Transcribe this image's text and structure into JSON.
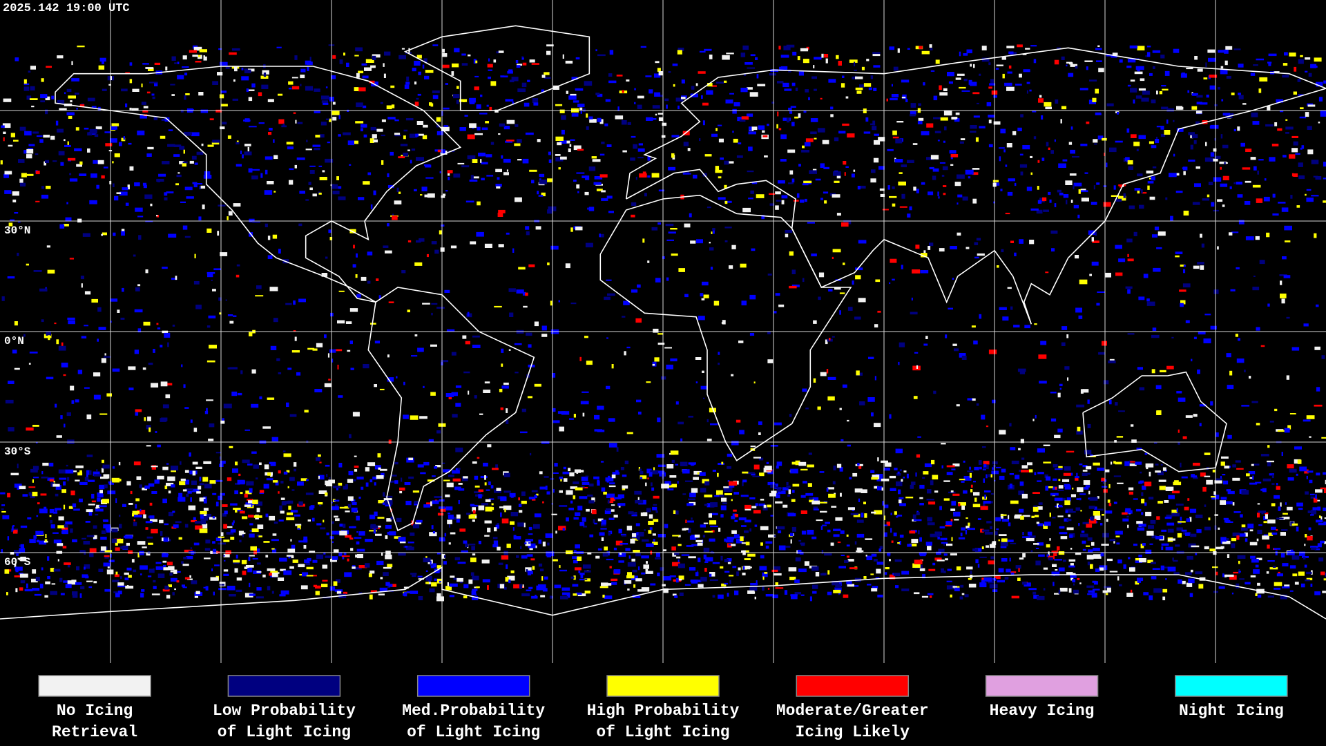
{
  "header": {
    "timestamp": "2025.142 19:00 UTC"
  },
  "map": {
    "lat_labels": [
      "30°N",
      "0°N",
      "30°S",
      "60°S"
    ]
  },
  "legend": {
    "items": [
      {
        "lines": [
          "No Icing",
          "Retrieval"
        ],
        "color": "#f2f2f2"
      },
      {
        "lines": [
          "Low Probability",
          "of Light Icing"
        ],
        "color": "#000080"
      },
      {
        "lines": [
          "Med.Probability",
          "of Light Icing"
        ],
        "color": "#0000ff"
      },
      {
        "lines": [
          "High Probability",
          "of Light Icing"
        ],
        "color": "#ffff00"
      },
      {
        "lines": [
          "Moderate/Greater",
          "Icing Likely"
        ],
        "color": "#ff0000"
      },
      {
        "lines": [
          "Heavy Icing"
        ],
        "color": "#e0a0e0"
      },
      {
        "lines": [
          "Night Icing"
        ],
        "color": "#00ffff"
      }
    ]
  }
}
